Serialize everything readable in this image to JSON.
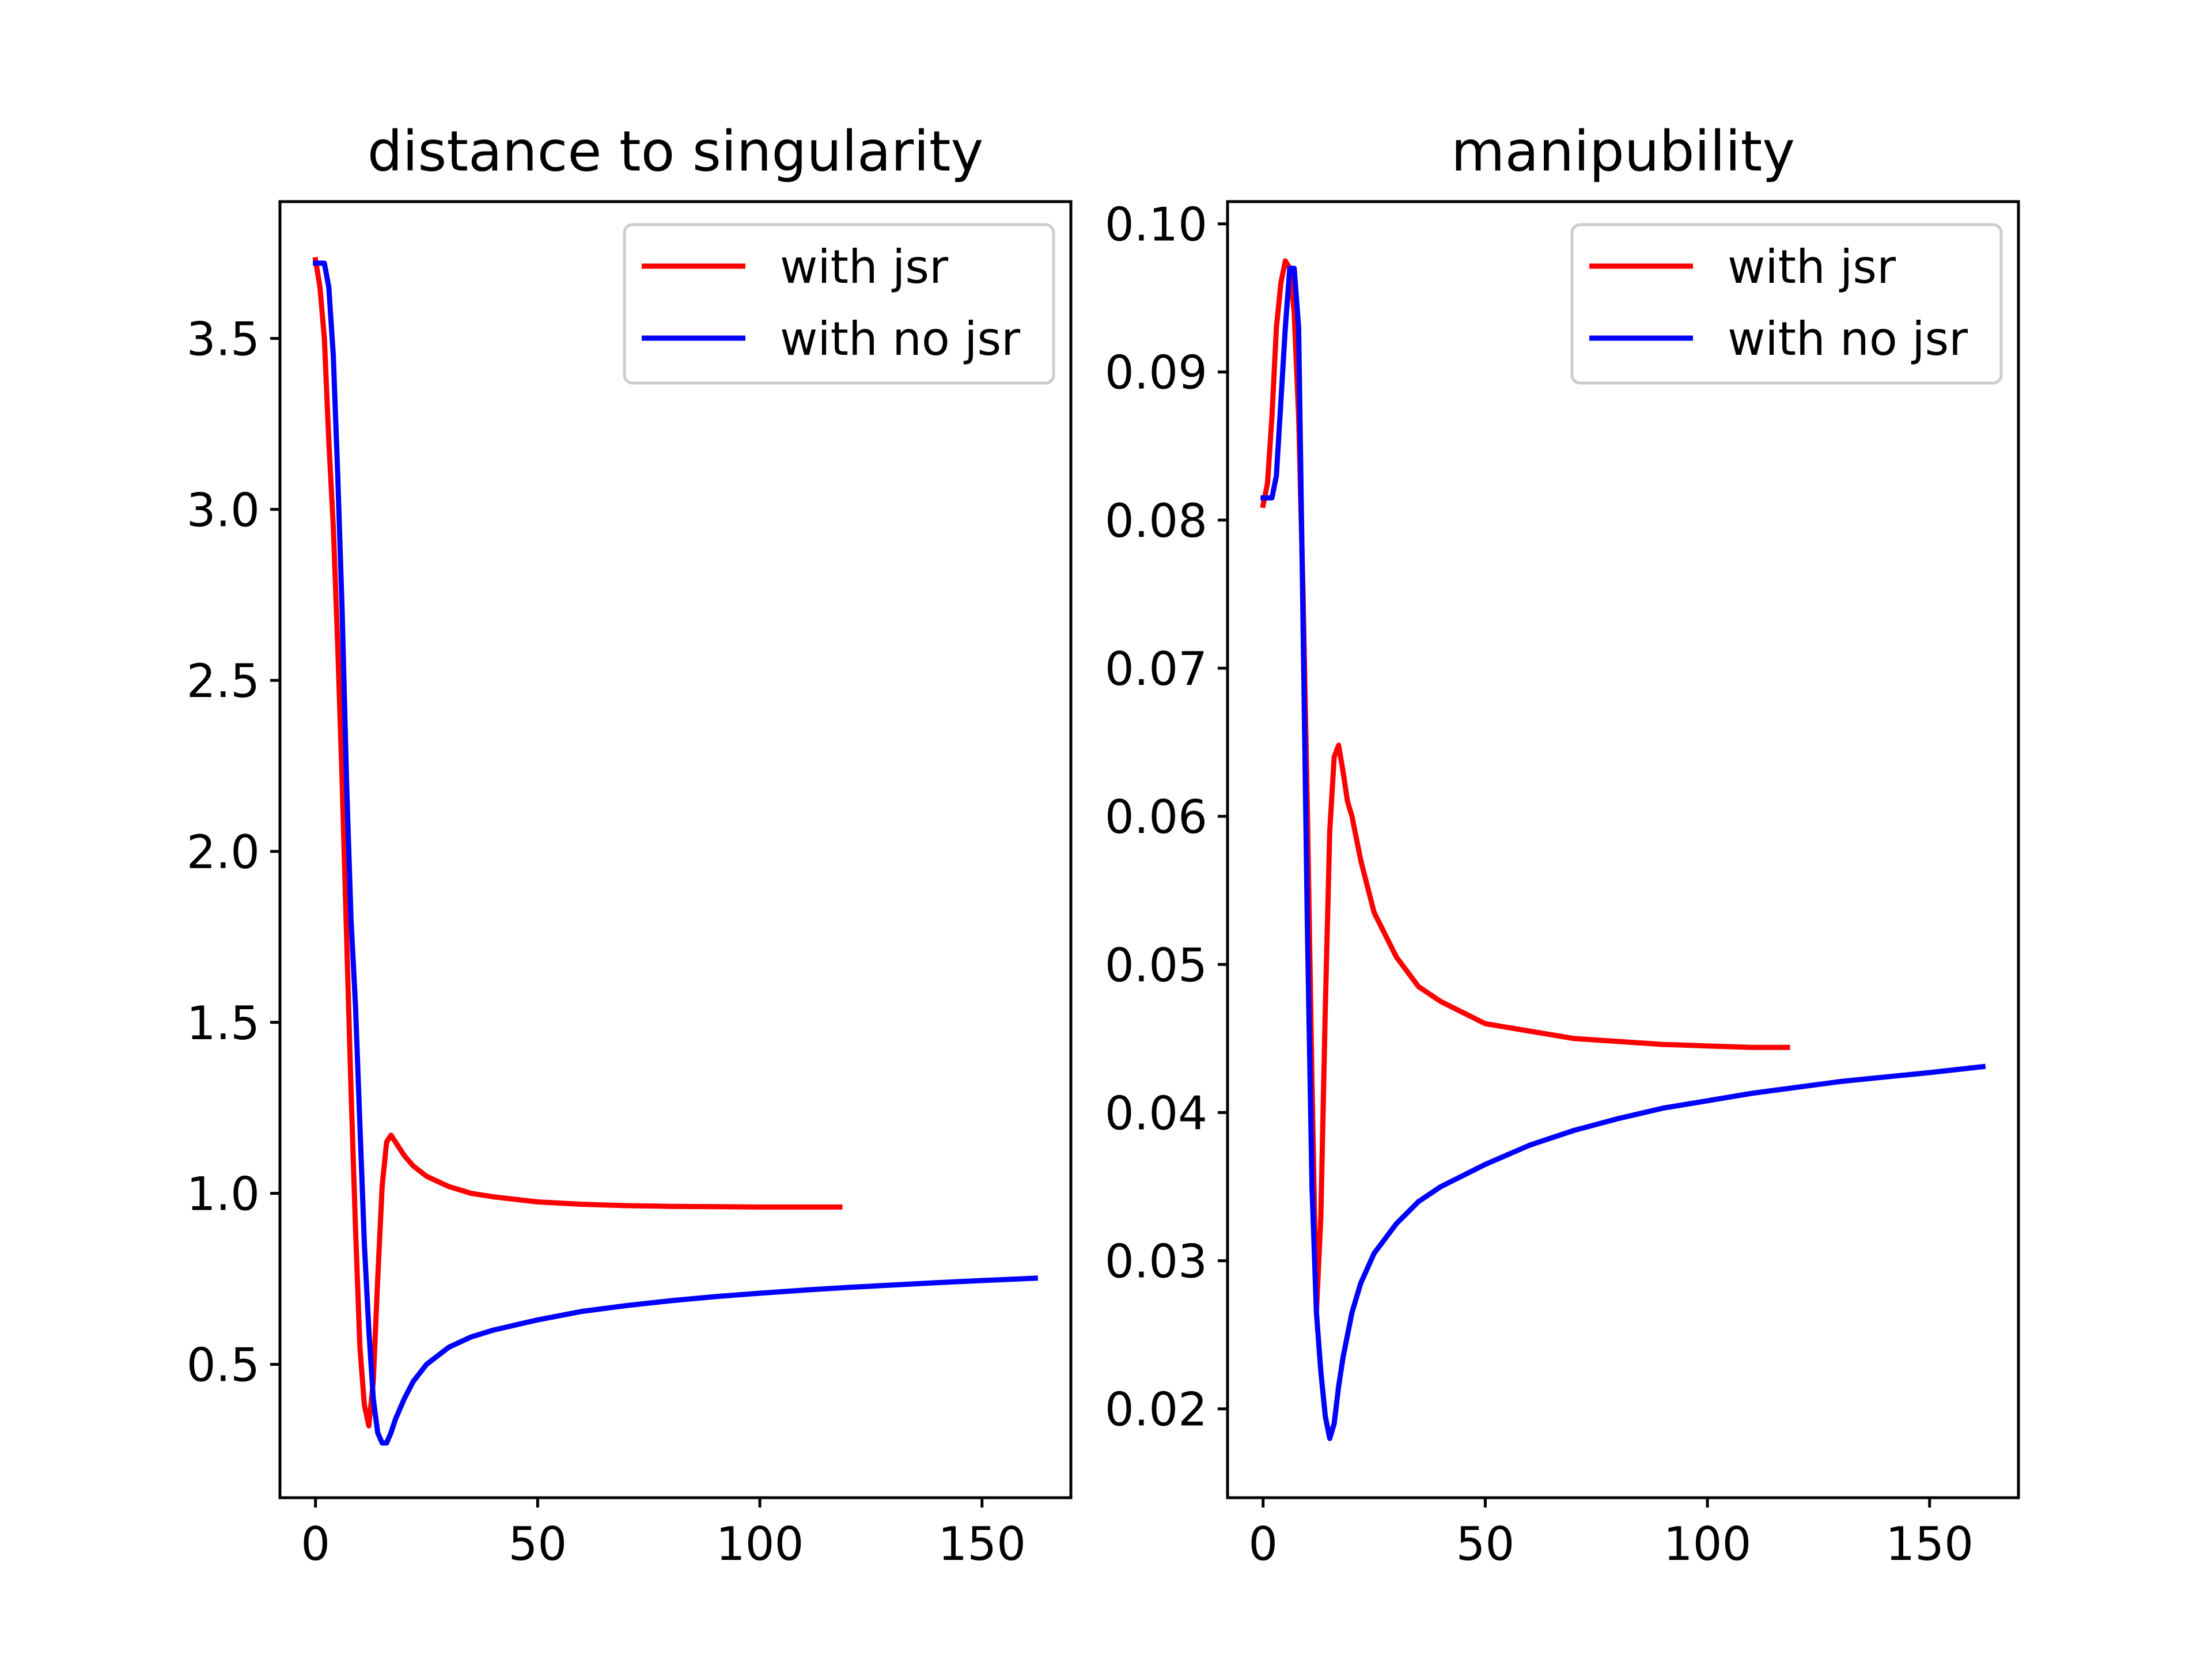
{
  "chart_data": [
    {
      "type": "line",
      "title": "distance to singularity",
      "xlabel": "",
      "ylabel": "",
      "xlim": [
        -8,
        170
      ],
      "ylim": [
        0.11,
        3.9
      ],
      "xticks": [
        0,
        50,
        100,
        150
      ],
      "xtick_labels": [
        "0",
        "50",
        "100",
        "150"
      ],
      "yticks": [
        0.5,
        1.0,
        1.5,
        2.0,
        2.5,
        3.0,
        3.5
      ],
      "ytick_labels": [
        "0.5",
        "1.0",
        "1.5",
        "2.0",
        "2.5",
        "3.0",
        "3.5"
      ],
      "grid": false,
      "legend": "top-right",
      "series": [
        {
          "name": "with jsr",
          "color": "#ff0000",
          "x": [
            0,
            1,
            2,
            3,
            4,
            5,
            6,
            7,
            8,
            9,
            10,
            11,
            12,
            13,
            14,
            15,
            16,
            17,
            18,
            19,
            20,
            22,
            25,
            30,
            35,
            40,
            50,
            60,
            70,
            80,
            90,
            100,
            110,
            118
          ],
          "y": [
            3.73,
            3.65,
            3.5,
            3.2,
            2.95,
            2.6,
            2.2,
            1.75,
            1.3,
            0.9,
            0.55,
            0.38,
            0.32,
            0.45,
            0.75,
            1.02,
            1.15,
            1.17,
            1.15,
            1.13,
            1.11,
            1.08,
            1.05,
            1.02,
            1.0,
            0.99,
            0.975,
            0.968,
            0.964,
            0.962,
            0.961,
            0.96,
            0.96,
            0.96
          ]
        },
        {
          "name": "with no jsr",
          "color": "#0000ff",
          "x": [
            0,
            1,
            2,
            3,
            4,
            5,
            6,
            7,
            8,
            9,
            10,
            11,
            12,
            13,
            14,
            15,
            16,
            17,
            18,
            20,
            22,
            25,
            30,
            35,
            40,
            50,
            60,
            70,
            80,
            90,
            100,
            110,
            120,
            130,
            140,
            150,
            162
          ],
          "y": [
            3.72,
            3.72,
            3.72,
            3.65,
            3.45,
            3.1,
            2.7,
            2.2,
            1.8,
            1.55,
            1.2,
            0.85,
            0.6,
            0.4,
            0.3,
            0.27,
            0.27,
            0.3,
            0.34,
            0.4,
            0.45,
            0.5,
            0.55,
            0.58,
            0.6,
            0.63,
            0.655,
            0.672,
            0.686,
            0.698,
            0.708,
            0.717,
            0.725,
            0.732,
            0.739,
            0.745,
            0.752
          ]
        }
      ]
    },
    {
      "type": "line",
      "title": "manipubility",
      "xlabel": "",
      "ylabel": "",
      "xlim": [
        -8,
        170
      ],
      "ylim": [
        0.014,
        0.1015
      ],
      "xticks": [
        0,
        50,
        100,
        150
      ],
      "xtick_labels": [
        "0",
        "50",
        "100",
        "150"
      ],
      "yticks": [
        0.02,
        0.03,
        0.04,
        0.05,
        0.06,
        0.07,
        0.08,
        0.09,
        0.1
      ],
      "ytick_labels": [
        "0.02",
        "0.03",
        "0.04",
        "0.05",
        "0.06",
        "0.07",
        "0.08",
        "0.09",
        "0.10"
      ],
      "grid": false,
      "legend": "top-right",
      "series": [
        {
          "name": "with jsr",
          "color": "#ff0000",
          "x": [
            0,
            1,
            2,
            3,
            4,
            5,
            6,
            7,
            8,
            9,
            10,
            11,
            12,
            13,
            14,
            15,
            16,
            17,
            18,
            19,
            20,
            22,
            25,
            30,
            35,
            40,
            50,
            60,
            70,
            80,
            90,
            100,
            110,
            118
          ],
          "y": [
            0.081,
            0.0825,
            0.087,
            0.093,
            0.096,
            0.0975,
            0.097,
            0.094,
            0.087,
            0.075,
            0.06,
            0.042,
            0.0265,
            0.033,
            0.047,
            0.059,
            0.064,
            0.0648,
            0.063,
            0.061,
            0.06,
            0.057,
            0.0535,
            0.0505,
            0.0485,
            0.0475,
            0.046,
            0.0455,
            0.045,
            0.0448,
            0.0446,
            0.0445,
            0.0444,
            0.0444
          ]
        },
        {
          "name": "with no jsr",
          "color": "#0000ff",
          "x": [
            0,
            1,
            2,
            3,
            4,
            5,
            6,
            7,
            8,
            9,
            10,
            11,
            12,
            13,
            14,
            15,
            16,
            17,
            18,
            20,
            22,
            25,
            30,
            35,
            40,
            50,
            60,
            70,
            80,
            90,
            100,
            110,
            120,
            130,
            140,
            150,
            162
          ],
          "y": [
            0.0815,
            0.0815,
            0.0815,
            0.083,
            0.088,
            0.093,
            0.097,
            0.097,
            0.093,
            0.073,
            0.052,
            0.035,
            0.0265,
            0.0225,
            0.0195,
            0.018,
            0.019,
            0.0215,
            0.0235,
            0.0265,
            0.0285,
            0.0305,
            0.0325,
            0.034,
            0.035,
            0.0365,
            0.0378,
            0.0388,
            0.0396,
            0.0403,
            0.0408,
            0.0413,
            0.0417,
            0.0421,
            0.0424,
            0.0427,
            0.0431
          ]
        }
      ]
    }
  ]
}
